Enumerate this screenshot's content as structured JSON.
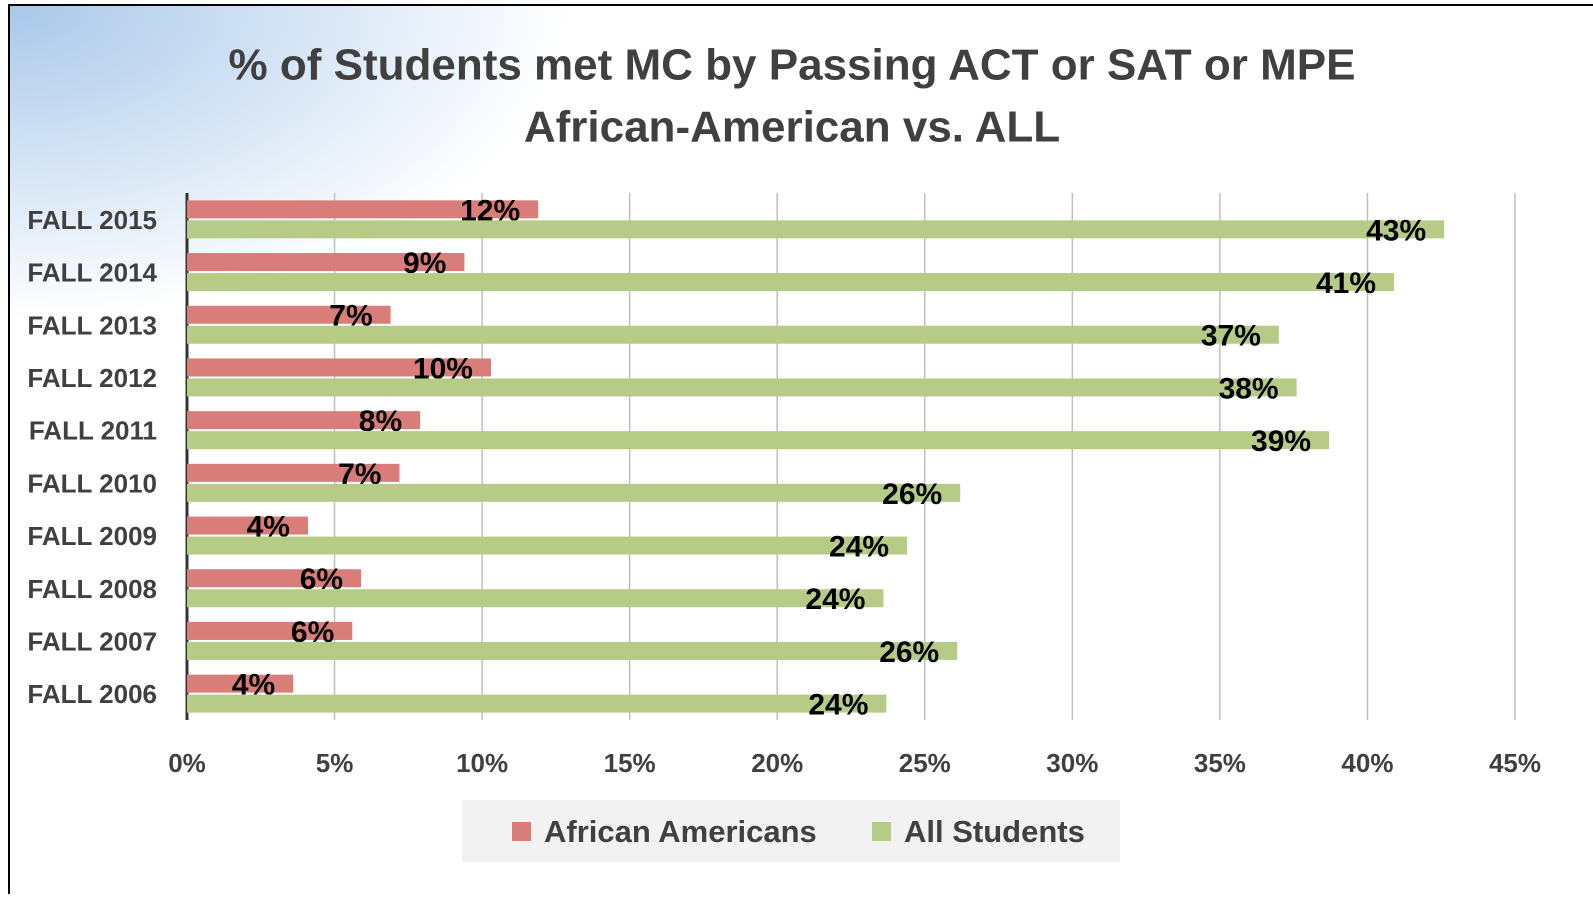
{
  "chart_data": {
    "type": "hbar",
    "title": [
      "% of Students met MC by Passing ACT or SAT or MPE",
      "African-American vs. ALL"
    ],
    "categories": [
      "FALL 2015",
      "FALL 2014",
      "FALL 2013",
      "FALL 2012",
      "FALL 2011",
      "FALL 2010",
      "FALL 2009",
      "FALL 2008",
      "FALL 2007",
      "FALL 2006"
    ],
    "series": [
      {
        "name": "African Americans",
        "color": "#d87d79",
        "values": [
          11.9,
          9.4,
          6.9,
          10.3,
          7.9,
          7.2,
          4.1,
          5.9,
          5.6,
          3.6
        ],
        "value_labels": [
          "12%",
          "9%",
          "7%",
          "10%",
          "8%",
          "7%",
          "4%",
          "6%",
          "6%",
          "4%"
        ]
      },
      {
        "name": "All Students",
        "color": "#b6cc86",
        "values": [
          42.6,
          40.9,
          37.0,
          37.6,
          38.7,
          26.2,
          24.4,
          23.6,
          26.1,
          23.7
        ],
        "value_labels": [
          "43%",
          "41%",
          "37%",
          "38%",
          "39%",
          "26%",
          "24%",
          "24%",
          "26%",
          "24%"
        ]
      }
    ],
    "xlim": [
      0,
      45
    ],
    "xticks": [
      {
        "value": 0,
        "label": "0%"
      },
      {
        "value": 5,
        "label": "5%"
      },
      {
        "value": 10,
        "label": "10%"
      },
      {
        "value": 15,
        "label": "15%"
      },
      {
        "value": 20,
        "label": "20%"
      },
      {
        "value": 25,
        "label": "25%"
      },
      {
        "value": 30,
        "label": "30%"
      },
      {
        "value": 35,
        "label": "35%"
      },
      {
        "value": 40,
        "label": "40%"
      },
      {
        "value": 45,
        "label": "45%"
      }
    ],
    "grid": true,
    "legend": "bottom"
  }
}
